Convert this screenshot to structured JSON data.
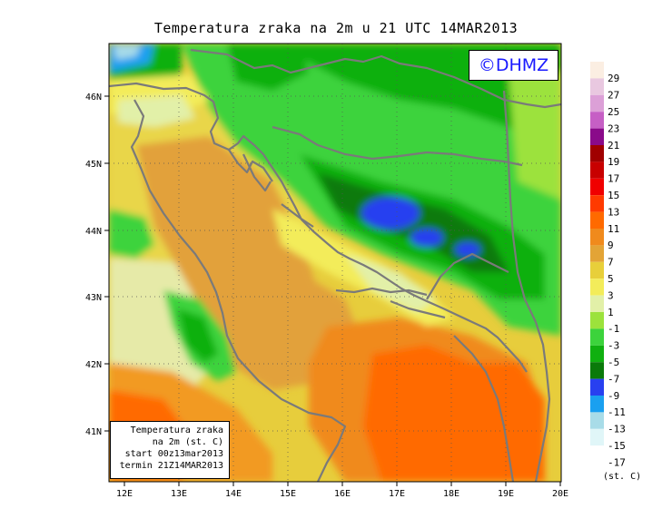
{
  "title": "Temperatura zraka na 2m u 21 UTC 14MAR2013",
  "copyright": "©DHMZ",
  "info_box": {
    "line1": "Temperatura zraka",
    "line2": "na 2m (st. C)",
    "line3": "start 00z13mar2013",
    "line4": "termin 21Z14MAR2013"
  },
  "axes": {
    "x_ticks": [
      "12E",
      "13E",
      "14E",
      "15E",
      "16E",
      "17E",
      "18E",
      "19E",
      "20E"
    ],
    "y_ticks": [
      "46N",
      "45N",
      "44N",
      "43N",
      "42N",
      "41N"
    ]
  },
  "legend": {
    "units": "(st. C)",
    "entries": [
      {
        "label": "29",
        "color": "#fbeee2"
      },
      {
        "label": "27",
        "color": "#e9c8e0"
      },
      {
        "label": "25",
        "color": "#dca0d7"
      },
      {
        "label": "23",
        "color": "#c65fc5"
      },
      {
        "label": "21",
        "color": "#8a0a8a"
      },
      {
        "label": "19",
        "color": "#a00000"
      },
      {
        "label": "17",
        "color": "#c80000"
      },
      {
        "label": "15",
        "color": "#f00000"
      },
      {
        "label": "13",
        "color": "#ff3a00"
      },
      {
        "label": "11",
        "color": "#ff6a00"
      },
      {
        "label": "9",
        "color": "#f08a1c"
      },
      {
        "label": "7",
        "color": "#e3a436"
      },
      {
        "label": "5",
        "color": "#e8cf3a"
      },
      {
        "label": "3",
        "color": "#f3ec5a"
      },
      {
        "label": "1",
        "color": "#e2f0a8"
      },
      {
        "label": "-1",
        "color": "#9ce23c"
      },
      {
        "label": "-3",
        "color": "#3cd33c"
      },
      {
        "label": "-5",
        "color": "#10b010"
      },
      {
        "label": "-7",
        "color": "#0a7a0a"
      },
      {
        "label": "-9",
        "color": "#2840f0"
      },
      {
        "label": "-11",
        "color": "#1aa0f0"
      },
      {
        "label": "-13",
        "color": "#a8dce8"
      },
      {
        "label": "-15",
        "color": "#e0f6f8"
      },
      {
        "label": "-17",
        "color": "#ffffff"
      }
    ]
  }
}
